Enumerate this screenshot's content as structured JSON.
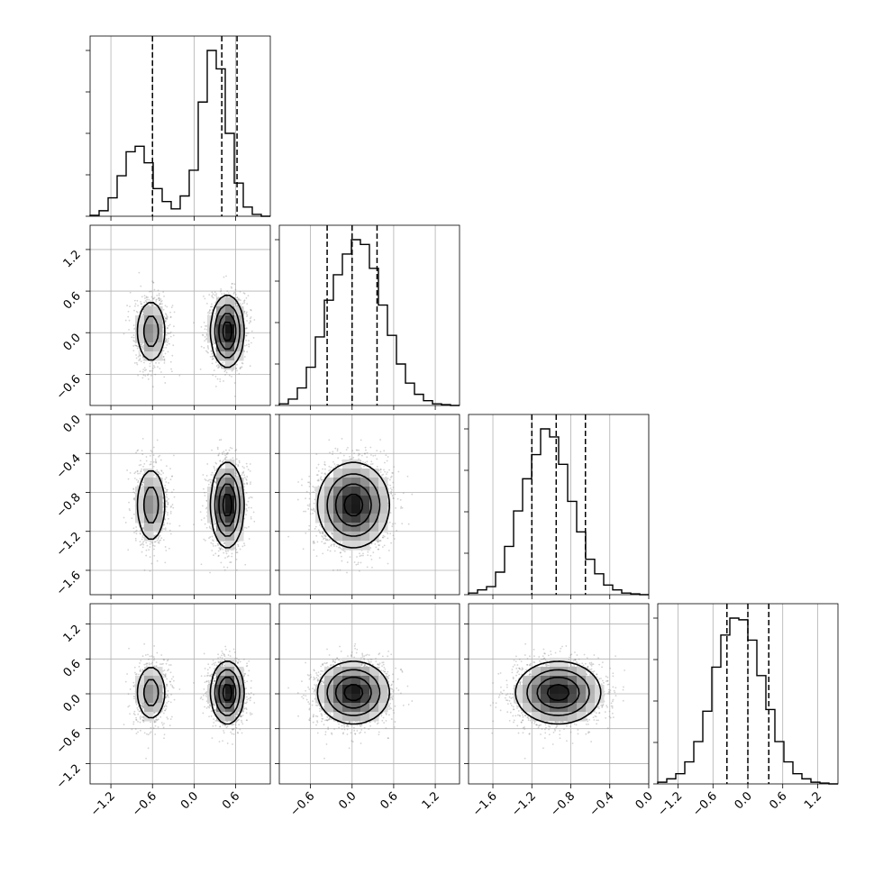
{
  "chart_data": {
    "type": "corner",
    "n_dims": 4,
    "colors": {
      "ink": "#000000",
      "grid": "#b0b0b0",
      "samples": "#808080",
      "frame": "#000000"
    },
    "grid": true,
    "quantile_lines": "dashed",
    "ranges": [
      [
        -1.5,
        1.1
      ],
      [
        -1.05,
        1.55
      ],
      [
        -1.85,
        0.0
      ],
      [
        -1.55,
        1.55
      ]
    ],
    "tick_labels": [
      [
        "−1.2",
        "−0.6",
        "0.0",
        "0.6"
      ],
      [
        "−0.6",
        "0.0",
        "0.6",
        "1.2"
      ],
      [
        "−1.6",
        "−1.2",
        "−0.8",
        "−0.4",
        "0.0"
      ],
      [
        "−1.2",
        "−0.6",
        "0.0",
        "0.6",
        "1.2"
      ]
    ],
    "tick_values": [
      [
        -1.2,
        -0.6,
        0.0,
        0.6
      ],
      [
        -0.6,
        0.0,
        0.6,
        1.2
      ],
      [
        -1.6,
        -1.2,
        -0.8,
        -0.4,
        0.0
      ],
      [
        -1.2,
        -0.6,
        0.0,
        0.6,
        1.2
      ]
    ],
    "quantiles": [
      [
        -0.6,
        0.4,
        0.62
      ],
      [
        -0.36,
        0.0,
        0.36
      ],
      [
        -1.2,
        -0.95,
        -0.65
      ],
      [
        -0.36,
        0.0,
        0.36
      ]
    ],
    "marginals": [
      {
        "bins": 20,
        "range": [
          -1.5,
          1.1
        ],
        "counts": [
          0.5,
          3,
          10,
          22,
          35,
          38,
          29,
          15,
          8,
          4,
          11,
          25,
          62,
          90,
          80,
          45,
          18,
          5,
          1,
          0
        ]
      },
      {
        "bins": 20,
        "range": [
          -1.05,
          1.55
        ],
        "counts": [
          1,
          4,
          11,
          24,
          43,
          66,
          82,
          95,
          104,
          101,
          86,
          63,
          44,
          26,
          14,
          7,
          3,
          1,
          0.5,
          0
        ]
      },
      {
        "bins": 20,
        "range": [
          -1.85,
          0.0
        ],
        "counts": [
          1,
          3,
          5,
          14,
          30,
          52,
          72,
          87,
          103,
          98,
          81,
          58,
          39,
          22,
          13,
          6,
          3,
          1,
          0.5,
          0
        ]
      },
      {
        "bins": 20,
        "range": [
          -1.55,
          1.55
        ],
        "counts": [
          1,
          3,
          6,
          13,
          25,
          43,
          69,
          88,
          98,
          97,
          85,
          64,
          44,
          25,
          13,
          6,
          3,
          1,
          0.5,
          0
        ]
      }
    ],
    "dist_x0": {
      "type": "bimodal",
      "components": [
        {
          "weight": 0.33,
          "mean": -0.62,
          "sd": 0.12
        },
        {
          "weight": 0.67,
          "mean": 0.48,
          "sd": 0.12
        }
      ]
    },
    "dist_x1": {
      "type": "normal",
      "mean": 0.02,
      "sd": 0.26
    },
    "dist_x2": {
      "type": "normal",
      "mean": -0.93,
      "sd": 0.22
    },
    "dist_x3": {
      "type": "normal",
      "mean": 0.02,
      "sd": 0.27
    }
  }
}
